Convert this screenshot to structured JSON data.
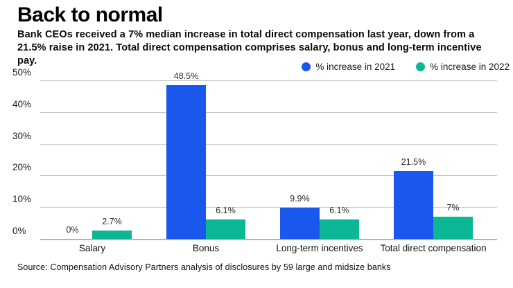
{
  "chart_data": {
    "type": "bar",
    "title": "Back to normal",
    "subtitle": "Bank CEOs received a 7% median increase in total direct compensation last year, down from a 21.5% raise in 2021. Total direct compensation comprises salary, bonus and long-term incentive pay.",
    "categories": [
      "Salary",
      "Bonus",
      "Long-term incentives",
      "Total direct compensation"
    ],
    "series": [
      {
        "name": "% increase in 2021",
        "color": "#1a57ec",
        "values": [
          0,
          48.5,
          9.9,
          21.5
        ],
        "labels": [
          "0%",
          "48.5%",
          "9.9%",
          "21.5%"
        ]
      },
      {
        "name": "% increase in 2022",
        "color": "#0cb795",
        "values": [
          2.7,
          6.1,
          6.1,
          7
        ],
        "labels": [
          "2.7%",
          "6.1%",
          "6.1%",
          "7%"
        ]
      }
    ],
    "ylim": [
      0,
      50
    ],
    "y_ticks": [
      {
        "label": "50%",
        "value": 50
      },
      {
        "label": "40%",
        "value": 40
      },
      {
        "label": "30%",
        "value": 30
      },
      {
        "label": "20%",
        "value": 20
      },
      {
        "label": "10%",
        "value": 10
      },
      {
        "label": "0%",
        "value": 0
      }
    ],
    "grid": true,
    "legend_position": "top-right",
    "source": "Source: Compensation Advisory Partners analysis of disclosures by 59 large and midsize banks"
  }
}
